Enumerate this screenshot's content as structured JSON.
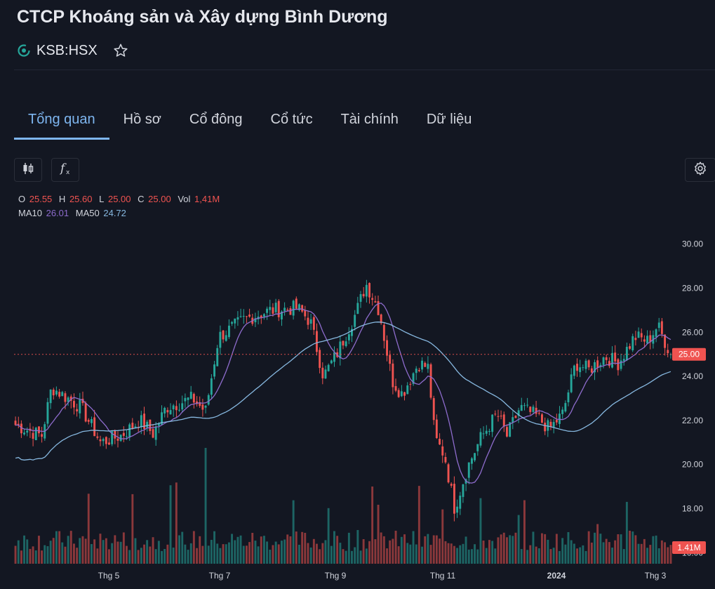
{
  "header": {
    "title": "CTCP Khoáng sản và Xây dựng Bình Dương",
    "ticker": "KSB:HSX"
  },
  "tabs": [
    "Tổng quan",
    "Hồ sơ",
    "Cổ đông",
    "Cổ tức",
    "Tài chính",
    "Dữ liệu"
  ],
  "active_tab": 0,
  "toolbar": {
    "chart_type_icon": "candlestick-icon",
    "indicators_icon": "function-fx-icon",
    "settings_icon": "gear-icon"
  },
  "legend": {
    "o_label": "O",
    "o_value": "25.55",
    "h_label": "H",
    "h_value": "25.60",
    "l_label": "L",
    "l_value": "25.00",
    "c_label": "C",
    "c_value": "25.00",
    "vol_label": "Vol",
    "vol_value": "1,41M",
    "ma10_label": "MA10",
    "ma10_value": "26.01",
    "ma50_label": "MA50",
    "ma50_value": "24.72"
  },
  "colors": {
    "background": "#131722",
    "up": "#26a69a",
    "down": "#ef5350",
    "ma10": "#8e6ccd",
    "ma50": "#87b8e0",
    "accent": "#7eb6f0"
  },
  "chart_data": {
    "type": "candlestick",
    "y_ticks": [
      "30.00",
      "28.00",
      "26.00",
      "24.00",
      "22.00",
      "20.00",
      "18.00",
      "16.00"
    ],
    "ylim": [
      15.5,
      31.2
    ],
    "x_ticks": [
      {
        "label": "Thg 5",
        "x": "2023-05"
      },
      {
        "label": "Thg 7",
        "x": "2023-07"
      },
      {
        "label": "Thg 9",
        "x": "2023-09"
      },
      {
        "label": "Thg 11",
        "x": "2023-11"
      },
      {
        "label": "2024",
        "x": "2024-01"
      },
      {
        "label": "Thg 3",
        "x": "2024-03"
      }
    ],
    "last_price": "25.00",
    "last_volume": "1.41M",
    "price_path": [
      {
        "t": 0,
        "p": 21.8
      },
      {
        "t": 0.04,
        "p": 21.3
      },
      {
        "t": 0.055,
        "p": 23.5
      },
      {
        "t": 0.075,
        "p": 23.1
      },
      {
        "t": 0.1,
        "p": 22.6
      },
      {
        "t": 0.13,
        "p": 21.0
      },
      {
        "t": 0.16,
        "p": 21.3
      },
      {
        "t": 0.19,
        "p": 22.0
      },
      {
        "t": 0.21,
        "p": 21.4
      },
      {
        "t": 0.23,
        "p": 22.6
      },
      {
        "t": 0.27,
        "p": 23.0
      },
      {
        "t": 0.29,
        "p": 22.4
      },
      {
        "t": 0.31,
        "p": 25.8
      },
      {
        "t": 0.35,
        "p": 26.6
      },
      {
        "t": 0.39,
        "p": 27.0
      },
      {
        "t": 0.43,
        "p": 27.1
      },
      {
        "t": 0.45,
        "p": 26.5
      },
      {
        "t": 0.47,
        "p": 24.0
      },
      {
        "t": 0.49,
        "p": 25.0
      },
      {
        "t": 0.52,
        "p": 26.9
      },
      {
        "t": 0.535,
        "p": 28.2
      },
      {
        "t": 0.555,
        "p": 27.0
      },
      {
        "t": 0.575,
        "p": 23.8
      },
      {
        "t": 0.59,
        "p": 23.2
      },
      {
        "t": 0.615,
        "p": 24.6
      },
      {
        "t": 0.63,
        "p": 24.4
      },
      {
        "t": 0.64,
        "p": 21.2
      },
      {
        "t": 0.655,
        "p": 20.4
      },
      {
        "t": 0.67,
        "p": 18.0
      },
      {
        "t": 0.69,
        "p": 19.9
      },
      {
        "t": 0.71,
        "p": 21.2
      },
      {
        "t": 0.735,
        "p": 22.3
      },
      {
        "t": 0.75,
        "p": 21.3
      },
      {
        "t": 0.77,
        "p": 22.6
      },
      {
        "t": 0.795,
        "p": 22.2
      },
      {
        "t": 0.815,
        "p": 21.6
      },
      {
        "t": 0.835,
        "p": 22.3
      },
      {
        "t": 0.855,
        "p": 24.6
      },
      {
        "t": 0.875,
        "p": 24.3
      },
      {
        "t": 0.9,
        "p": 24.9
      },
      {
        "t": 0.92,
        "p": 24.6
      },
      {
        "t": 0.945,
        "p": 25.8
      },
      {
        "t": 0.965,
        "p": 25.6
      },
      {
        "t": 0.98,
        "p": 26.3
      },
      {
        "t": 1,
        "p": 25.0
      }
    ]
  }
}
